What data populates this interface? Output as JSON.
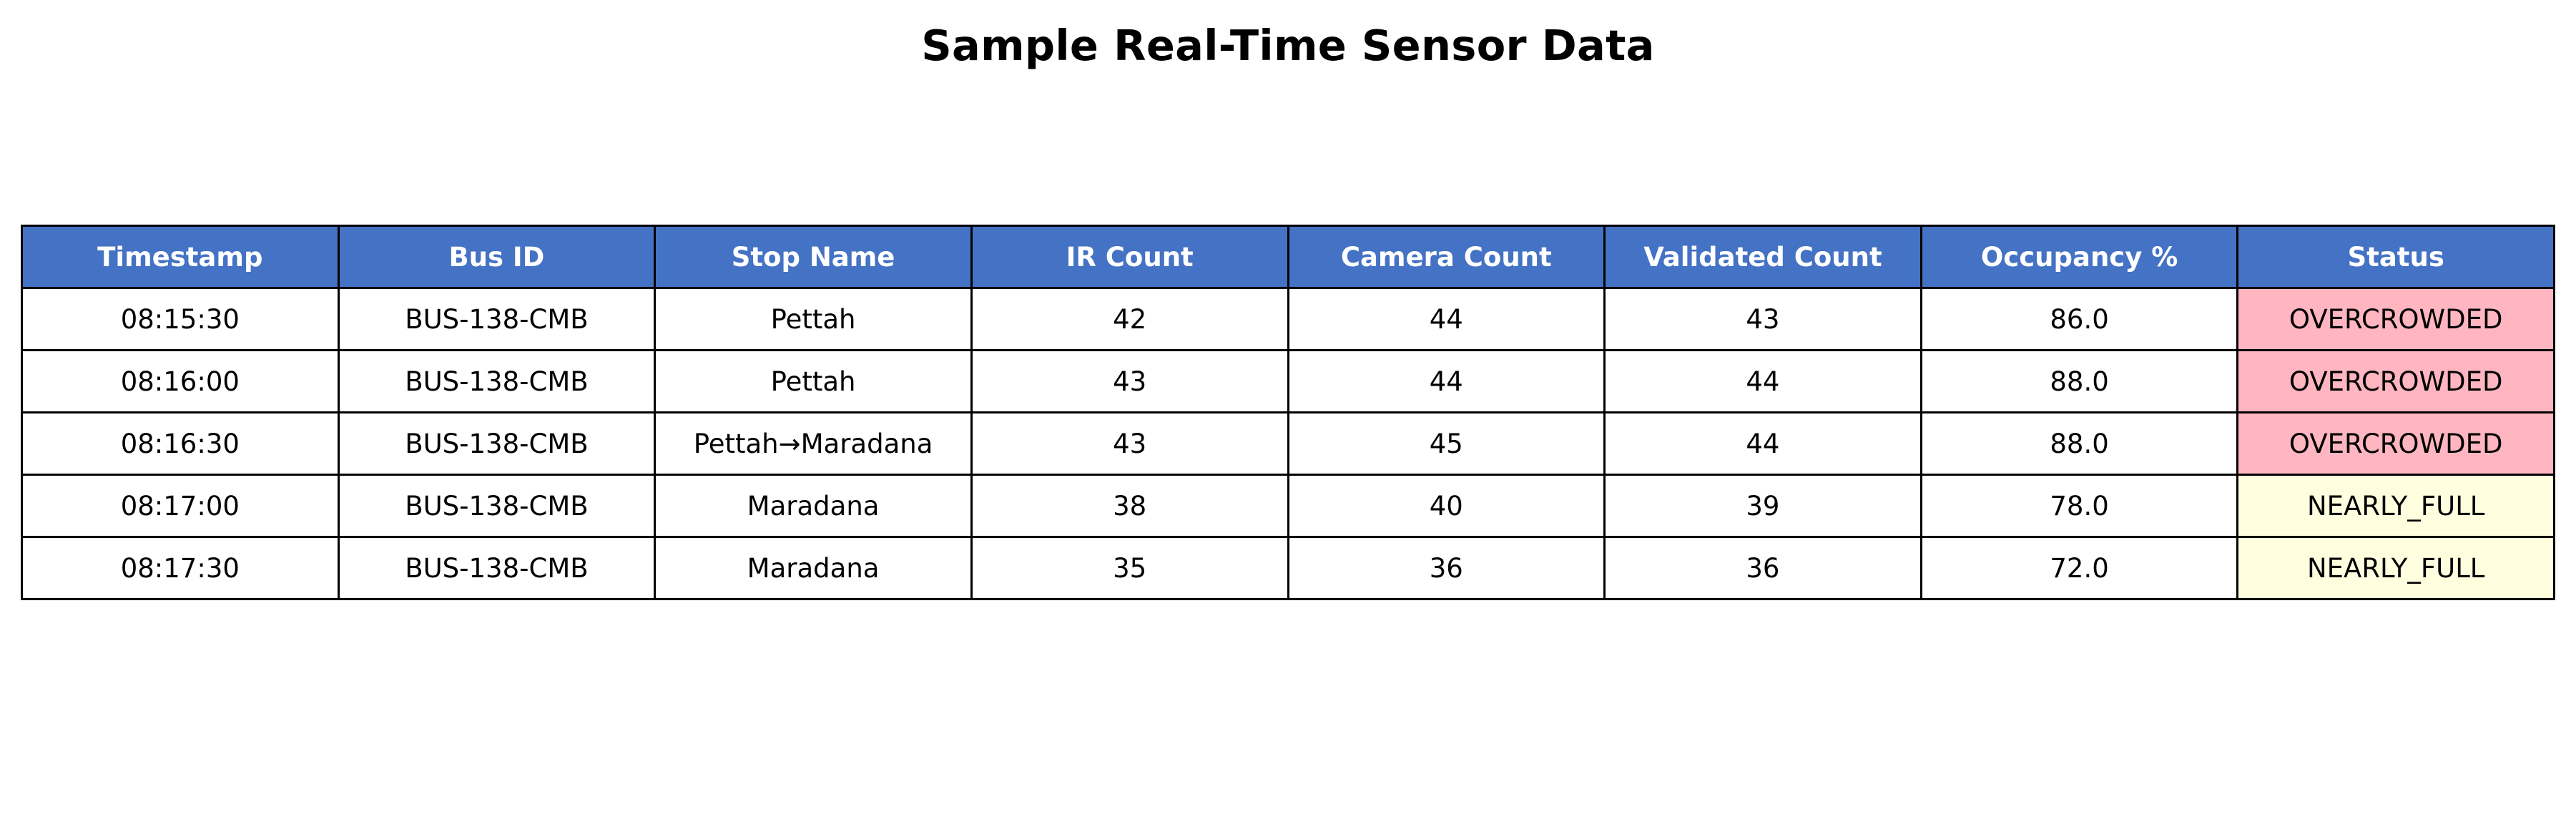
{
  "chart_data": {
    "type": "table",
    "title": "Sample Real-Time Sensor Data",
    "columns": [
      "Timestamp",
      "Bus ID",
      "Stop Name",
      "IR Count",
      "Camera Count",
      "Validated Count",
      "Occupancy %",
      "Status"
    ],
    "rows": [
      [
        "08:15:30",
        "BUS-138-CMB",
        "Pettah",
        "42",
        "44",
        "43",
        "86.0",
        "OVERCROWDED"
      ],
      [
        "08:16:00",
        "BUS-138-CMB",
        "Pettah",
        "43",
        "44",
        "44",
        "88.0",
        "OVERCROWDED"
      ],
      [
        "08:16:30",
        "BUS-138-CMB",
        "Pettah→Maradana",
        "43",
        "45",
        "44",
        "88.0",
        "OVERCROWDED"
      ],
      [
        "08:17:00",
        "BUS-138-CMB",
        "Maradana",
        "38",
        "40",
        "39",
        "78.0",
        "NEARLY_FULL"
      ],
      [
        "08:17:30",
        "BUS-138-CMB",
        "Maradana",
        "35",
        "36",
        "36",
        "72.0",
        "NEARLY_FULL"
      ]
    ]
  },
  "colors": {
    "header_background": "#4472c4",
    "header_text": "#ffffff",
    "status_overcrowded": "#ffb6c1",
    "status_nearly_full": "#ffffe0"
  }
}
